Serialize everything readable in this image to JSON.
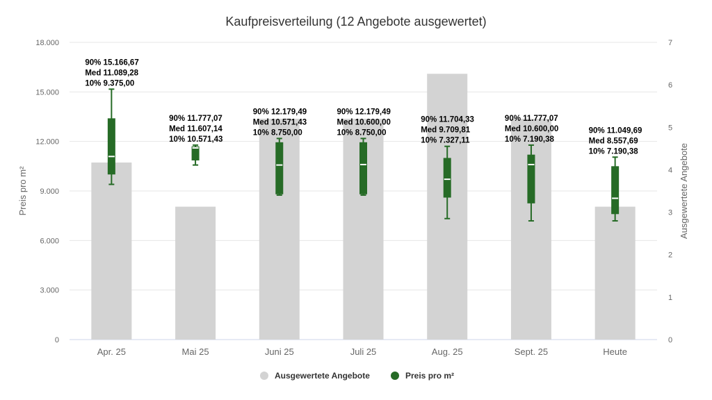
{
  "chart_data": {
    "type": "bar",
    "title": "Kaufpreisverteilung (12 Angebote ausgewertet)",
    "categories": [
      "Apr. 25",
      "Mai 25",
      "Juni 25",
      "Juli 25",
      "Aug. 25",
      "Sept. 25",
      "Heute"
    ],
    "y_left": {
      "label": "Preis pro m²",
      "range": [
        0,
        18000
      ],
      "ticks": [
        0,
        3000,
        6000,
        9000,
        12000,
        15000,
        18000
      ],
      "tick_labels": [
        "0",
        "3.000",
        "6.000",
        "9.000",
        "12.000",
        "15.000",
        "18.000"
      ]
    },
    "y_right": {
      "label": "Ausgewertete Angebote",
      "range": [
        0,
        7
      ],
      "ticks": [
        0,
        1,
        2,
        3,
        4,
        5,
        6,
        7
      ],
      "tick_labels": [
        "0",
        "1",
        "2",
        "3",
        "4",
        "5",
        "6",
        "7"
      ]
    },
    "grid": true,
    "legend_position": "bottom-center",
    "colors": {
      "bars": "#d3d3d3",
      "box": "#266b26",
      "median": "#ffffff",
      "grid": "#e6e6e6"
    },
    "series": [
      {
        "name": "Ausgewertete Angebote",
        "type": "bar",
        "axis": "right",
        "values": [
          4.17,
          3.13,
          5.2,
          5.2,
          6.26,
          5.2,
          3.13
        ]
      },
      {
        "name": "Preis pro m²",
        "type": "boxplot",
        "axis": "left",
        "points": [
          {
            "low": 9375.0,
            "q1": 10000,
            "median": 11089.28,
            "q3": 13400,
            "high": 15166.67,
            "whisker_low": 9400,
            "whisker_high": 15166.67
          },
          {
            "low": 10571.43,
            "q1": 10850,
            "median": 11607.14,
            "q3": 11700,
            "high": 11777.07,
            "whisker_low": 10571.43,
            "whisker_high": 11777.07
          },
          {
            "low": 8750.0,
            "q1": 8800,
            "median": 10571.43,
            "q3": 11950,
            "high": 12179.49,
            "whisker_low": 8750,
            "whisker_high": 12179.49
          },
          {
            "low": 8750.0,
            "q1": 8800,
            "median": 10600.0,
            "q3": 11950,
            "high": 12179.49,
            "whisker_low": 8750,
            "whisker_high": 12179.49
          },
          {
            "low": 7327.11,
            "q1": 8600,
            "median": 9709.81,
            "q3": 11000,
            "high": 11704.33,
            "whisker_low": 7327.11,
            "whisker_high": 11704.33
          },
          {
            "low": 7190.38,
            "q1": 8250,
            "median": 10600.0,
            "q3": 11200,
            "high": 11777.07,
            "whisker_low": 7190.38,
            "whisker_high": 11777.07
          },
          {
            "low": 7190.38,
            "q1": 7600,
            "median": 8557.69,
            "q3": 10500,
            "high": 11049.69,
            "whisker_low": 7190.38,
            "whisker_high": 11049.69
          }
        ]
      }
    ],
    "annotations": [
      [
        "90% 15.166,67",
        "Med 11.089,28",
        "10% 9.375,00"
      ],
      [
        "90% 11.777,07",
        "Med 11.607,14",
        "10% 10.571,43"
      ],
      [
        "90% 12.179,49",
        "Med 10.571,43",
        "10% 8.750,00"
      ],
      [
        "90% 12.179,49",
        "Med 10.600,00",
        "10% 8.750,00"
      ],
      [
        "90% 11.704,33",
        "Med 9.709,81",
        "10% 7.327,11"
      ],
      [
        "90% 11.777,07",
        "Med 10.600,00",
        "10% 7.190,38"
      ],
      [
        "90% 11.049,69",
        "Med 8.557,69",
        "10% 7.190,38"
      ]
    ],
    "legend": [
      "Ausgewertete Angebote",
      "Preis pro m²"
    ]
  }
}
